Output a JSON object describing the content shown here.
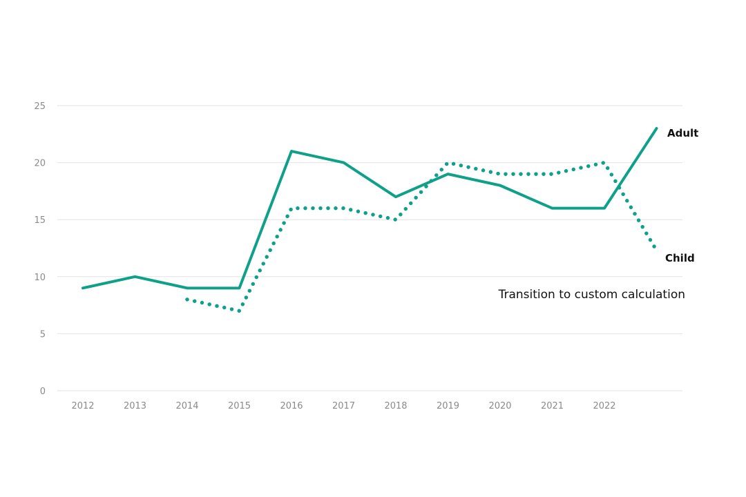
{
  "chart_data": {
    "type": "line",
    "title": "",
    "xlabel": "",
    "ylabel": "",
    "x": [
      2012,
      2013,
      2014,
      2015,
      2016,
      2017,
      2018,
      2019,
      2020,
      2021,
      2022,
      2023
    ],
    "x_tick_labels": [
      "2012",
      "2013",
      "2014",
      "2015",
      "2016",
      "2017",
      "2018",
      "2019",
      "2020",
      "2021",
      "2022"
    ],
    "ylim": [
      0,
      25
    ],
    "y_ticks": [
      0,
      5,
      10,
      15,
      20,
      25
    ],
    "grid": true,
    "series": [
      {
        "name": "Adult",
        "style": "solid",
        "color": "#0fa08a",
        "values": [
          9,
          10,
          9,
          9,
          21,
          20,
          17,
          19,
          18,
          16,
          16,
          23
        ]
      },
      {
        "name": "Child",
        "style": "dotted",
        "color": "#0fa08a",
        "values": [
          null,
          null,
          8,
          7,
          16,
          16,
          15,
          20,
          19,
          19,
          20,
          12.3
        ]
      }
    ],
    "annotations": [
      "Transition to custom calculation"
    ]
  }
}
